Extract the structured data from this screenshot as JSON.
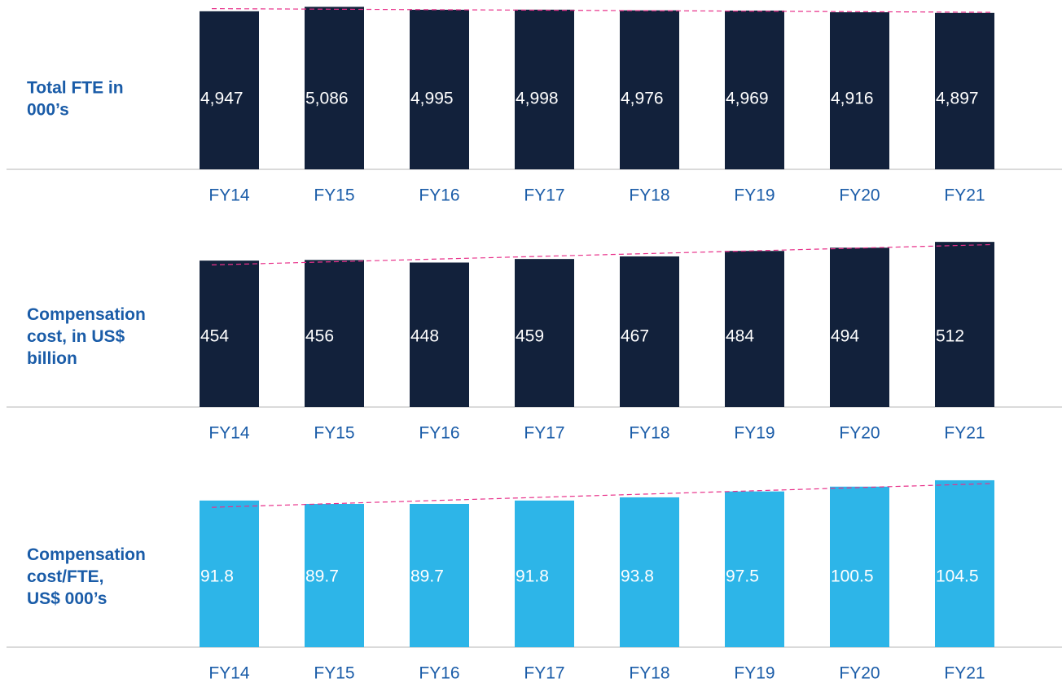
{
  "chart_data": [
    {
      "type": "bar",
      "title": [
        "Total FTE in",
        "000’s"
      ],
      "categories": [
        "FY14",
        "FY15",
        "FY16",
        "FY17",
        "FY18",
        "FY19",
        "FY20",
        "FY21"
      ],
      "values": [
        4947,
        5086,
        4995,
        4998,
        4976,
        4969,
        4916,
        4897
      ],
      "value_labels": [
        "4,947",
        "5,086",
        "4,995",
        "4,998",
        "4,976",
        "4,969",
        "4,916",
        "4,897"
      ],
      "color": "#12213b",
      "ylim": [
        0,
        5300
      ],
      "trendline": true,
      "trend_color": "#e8318a"
    },
    {
      "type": "bar",
      "title": [
        "Compensation",
        "cost, in US$",
        "billion"
      ],
      "categories": [
        "FY14",
        "FY15",
        "FY16",
        "FY17",
        "FY18",
        "FY19",
        "FY20",
        "FY21"
      ],
      "values": [
        454,
        456,
        448,
        459,
        467,
        484,
        494,
        512
      ],
      "color": "#12213b",
      "ylim": [
        0,
        525
      ],
      "trendline": true,
      "trend_color": "#e8318a"
    },
    {
      "type": "bar",
      "title": [
        "Compensation",
        "cost/FTE,",
        "US$ 000’s"
      ],
      "categories": [
        "FY14",
        "FY15",
        "FY16",
        "FY17",
        "FY18",
        "FY19",
        "FY20",
        "FY21"
      ],
      "values": [
        91.8,
        89.7,
        89.7,
        91.8,
        93.8,
        97.5,
        100.5,
        104.5
      ],
      "color": "#2db5e8",
      "ylim": [
        0,
        106
      ],
      "trendline": true,
      "trend_color": "#e8318a"
    }
  ]
}
